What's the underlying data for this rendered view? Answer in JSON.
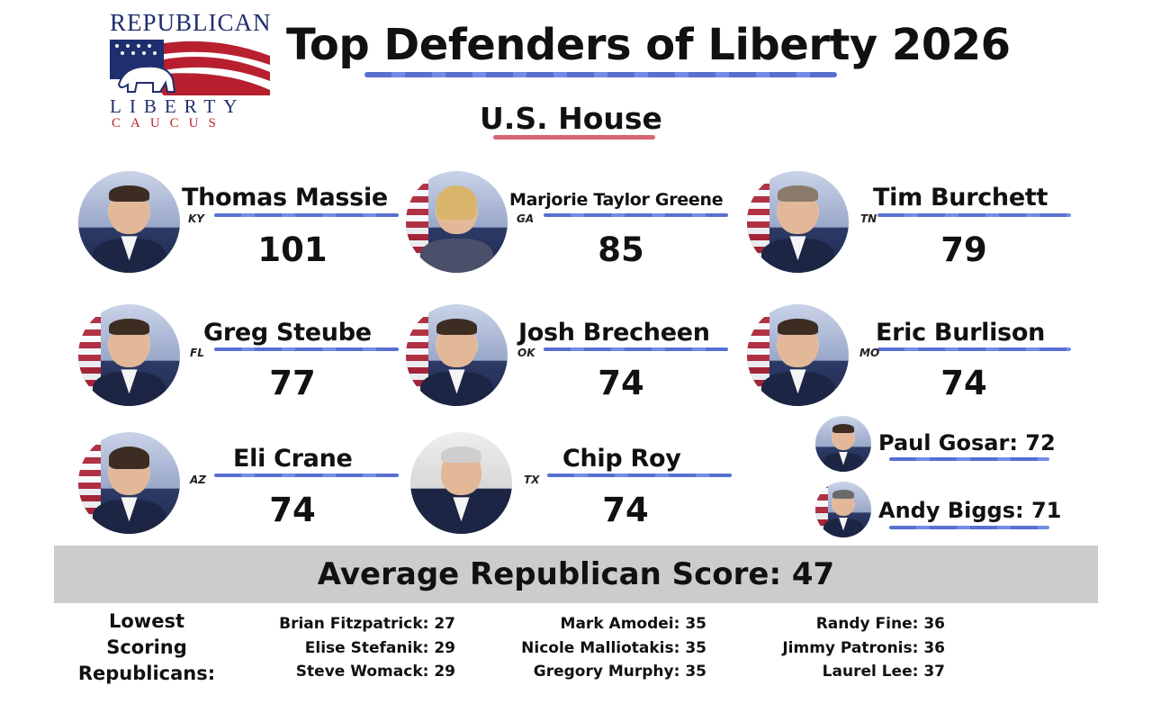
{
  "logo": {
    "top": "REPUBLICAN",
    "middle": "LIBERTY",
    "bottom": "CAUCUS"
  },
  "title": "Top Defenders of Liberty 2026",
  "subtitle": "U.S. House",
  "members": [
    {
      "name": "Thomas Massie",
      "state": "KY",
      "score": "101"
    },
    {
      "name": "Marjorie Taylor Greene",
      "state": "GA",
      "score": "85"
    },
    {
      "name": "Tim Burchett",
      "state": "TN",
      "score": "79"
    },
    {
      "name": "Greg Steube",
      "state": "FL",
      "score": "77"
    },
    {
      "name": "Josh Brecheen",
      "state": "OK",
      "score": "74"
    },
    {
      "name": "Eric Burlison",
      "state": "MO",
      "score": "74"
    },
    {
      "name": "Eli Crane",
      "state": "AZ",
      "score": "74"
    },
    {
      "name": "Chip Roy",
      "state": "TX",
      "score": "74"
    }
  ],
  "side_members": [
    {
      "label": "Paul Gosar: 72"
    },
    {
      "label": "Andy Biggs: 71"
    }
  ],
  "average": "Average Republican Score: 47",
  "lowest_label": [
    "Lowest",
    "Scoring",
    "Republicans:"
  ],
  "lowest": [
    [
      "Brian Fitzpatrick: 27",
      "Elise Stefanik: 29",
      "Steve Womack: 29"
    ],
    [
      "Mark Amodei: 35",
      "Nicole Malliotakis: 35",
      "Gregory Murphy: 35"
    ],
    [
      "Randy Fine: 36",
      "Jimmy Patronis: 36",
      "Laurel Lee: 37"
    ]
  ],
  "colors": {
    "navy": "#1f2e6e",
    "red": "#b8202f",
    "band": "#cccccc",
    "underline_blue": "#3a56c8"
  }
}
